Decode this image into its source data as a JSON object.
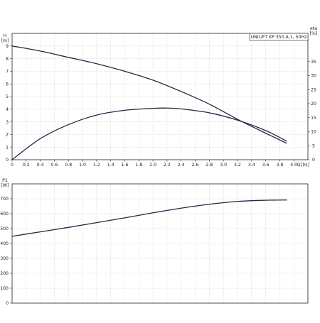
{
  "chart_data": [
    {
      "type": "line",
      "title": "UNILIFT KP 350.A.1, 50Hz",
      "xlabel": "Q [l/s]",
      "x_axis_name": "Q",
      "x_axis_unit": "[l/s]",
      "xlim": [
        0,
        4.2
      ],
      "x_ticks": [
        "0",
        "0.2",
        "0.4",
        "0.6",
        "0.8",
        "1.0",
        "1.2",
        "1.4",
        "1.6",
        "1.8",
        "2.0",
        "2.2",
        "2.4",
        "2.6",
        "2.8",
        "3.0",
        "3.2",
        "3.4",
        "3.6",
        "3.8",
        "4.0"
      ],
      "ylabel_left": "H [m]",
      "y_left_name": "H",
      "y_left_unit": "[m]",
      "ylim_left": [
        0,
        10
      ],
      "y_left_ticks": [
        "0",
        "1",
        "2",
        "3",
        "4",
        "5",
        "6",
        "7",
        "8",
        "9"
      ],
      "ylabel_right": "eta [%]",
      "y_right_name": "eta",
      "y_right_unit": "[%]",
      "ylim_right": [
        0,
        45
      ],
      "y_right_ticks": [
        "0",
        "5",
        "10",
        "15",
        "20",
        "25",
        "30",
        "35"
      ],
      "grid": true,
      "series": [
        {
          "axis": "left",
          "x": [
            0,
            0.4,
            0.8,
            1.2,
            1.6,
            2.0,
            2.4,
            2.8,
            3.2,
            3.6,
            3.9
          ],
          "values": [
            9.0,
            8.6,
            8.1,
            7.6,
            7.0,
            6.3,
            5.4,
            4.4,
            3.2,
            2.1,
            1.3
          ]
        },
        {
          "axis": "right",
          "x": [
            0,
            0.4,
            0.8,
            1.2,
            1.6,
            2.0,
            2.2,
            2.4,
            2.8,
            3.2,
            3.6,
            3.9
          ],
          "values": [
            0,
            7.5,
            12.5,
            15.9,
            17.6,
            18.3,
            18.4,
            18.1,
            16.7,
            14.1,
            10.4,
            6.6
          ]
        }
      ]
    },
    {
      "type": "line",
      "ylabel": "P1 [W]",
      "y_name": "P1",
      "y_unit": "[W]",
      "xlim": [
        0,
        4.2
      ],
      "ylim": [
        0,
        800
      ],
      "y_ticks": [
        "0",
        "100",
        "200",
        "300",
        "400",
        "500",
        "600",
        "700"
      ],
      "grid": true,
      "series": [
        {
          "x": [
            0,
            0.4,
            0.8,
            1.2,
            1.6,
            2.0,
            2.4,
            2.8,
            3.2,
            3.6,
            3.9
          ],
          "values": [
            448,
            478,
            508,
            540,
            572,
            606,
            637,
            663,
            682,
            690,
            692
          ]
        }
      ]
    }
  ]
}
